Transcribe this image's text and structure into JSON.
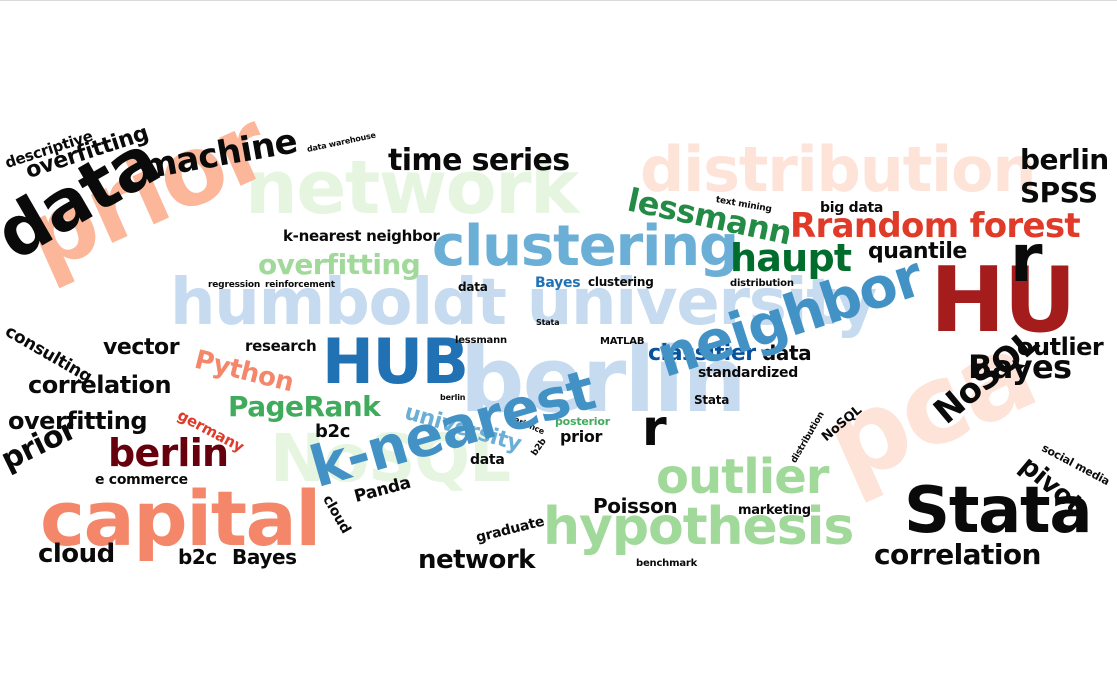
{
  "palette": {
    "black": "#0a0a0a",
    "dark_red": "#a51c1c",
    "maroon": "#67000d",
    "red": "#e03a28",
    "salmon": "#f4876a",
    "peach": "#fcb79b",
    "pale_peach": "#fde3d8",
    "light_blue": "#c6dbef",
    "mid_blue": "#6baed6",
    "blue": "#4292c6",
    "dark_blue": "#2171b5",
    "navy": "#08519c",
    "pale_green": "#e5f5e0",
    "light_green": "#a1d99b",
    "green": "#41ab5d",
    "dark_green": "#238b45",
    "forest": "#006d2c"
  },
  "words": [
    {
      "text": "distribution",
      "color": "pale_peach"
    },
    {
      "text": "network",
      "color": "pale_green"
    },
    {
      "text": "humboldt university",
      "color": "light_blue"
    },
    {
      "text": "prior",
      "color": "peach"
    },
    {
      "text": "berlin",
      "color": "light_blue"
    },
    {
      "text": "NoSQL",
      "color": "pale_green"
    },
    {
      "text": "pca",
      "color": "pale_peach"
    },
    {
      "text": "HU",
      "color": "dark_red"
    },
    {
      "text": "r",
      "color": "black"
    },
    {
      "text": "data",
      "color": "black"
    },
    {
      "text": "machine",
      "color": "black"
    },
    {
      "text": "overfitting",
      "color": "black"
    },
    {
      "text": "descriptive",
      "color": "black"
    },
    {
      "text": "data warehouse",
      "color": "black"
    },
    {
      "text": "time series",
      "color": "black"
    },
    {
      "text": "berlin",
      "color": "black"
    },
    {
      "text": "SPSS",
      "color": "black"
    },
    {
      "text": "lessmann",
      "color": "dark_green"
    },
    {
      "text": "text mining",
      "color": "black"
    },
    {
      "text": "big data",
      "color": "black"
    },
    {
      "text": "Rrandom forest",
      "color": "red"
    },
    {
      "text": "k-nearest neighbor",
      "color": "black"
    },
    {
      "text": "clustering",
      "color": "mid_blue"
    },
    {
      "text": "haupt",
      "color": "forest"
    },
    {
      "text": "quantile",
      "color": "black"
    },
    {
      "text": "overfitting",
      "color": "light_green"
    },
    {
      "text": "regression",
      "color": "black"
    },
    {
      "text": "reinforcement",
      "color": "black"
    },
    {
      "text": "data",
      "color": "black"
    },
    {
      "text": "Bayes",
      "color": "dark_blue"
    },
    {
      "text": "clustering",
      "color": "black"
    },
    {
      "text": "distribution",
      "color": "black"
    },
    {
      "text": "consulting",
      "color": "black"
    },
    {
      "text": "vector",
      "color": "black"
    },
    {
      "text": "research",
      "color": "black"
    },
    {
      "text": "HUB",
      "color": "dark_blue"
    },
    {
      "text": "lessmann",
      "color": "black"
    },
    {
      "text": "Stata",
      "color": "black"
    },
    {
      "text": "MATLAB",
      "color": "black"
    },
    {
      "text": "classifier",
      "color": "navy"
    },
    {
      "text": "data",
      "color": "black"
    },
    {
      "text": "outlier",
      "color": "black"
    },
    {
      "text": "Python",
      "color": "salmon"
    },
    {
      "text": "correlation",
      "color": "black"
    },
    {
      "text": "standardized",
      "color": "black"
    },
    {
      "text": "Bayes",
      "color": "black"
    },
    {
      "text": "overfitting",
      "color": "black"
    },
    {
      "text": "germany",
      "color": "red"
    },
    {
      "text": "PageRank",
      "color": "green"
    },
    {
      "text": "berlin",
      "color": "black"
    },
    {
      "text": "university",
      "color": "mid_blue"
    },
    {
      "text": "b2c",
      "color": "black"
    },
    {
      "text": "variance",
      "color": "black"
    },
    {
      "text": "posterior",
      "color": "green"
    },
    {
      "text": "Stata",
      "color": "black"
    },
    {
      "text": "neighbor",
      "color": "blue"
    },
    {
      "text": "r",
      "color": "black"
    },
    {
      "text": "prior",
      "color": "black"
    },
    {
      "text": "berlin",
      "color": "maroon"
    },
    {
      "text": "prior",
      "color": "black"
    },
    {
      "text": "b2b",
      "color": "black"
    },
    {
      "text": "data",
      "color": "black"
    },
    {
      "text": "distribution",
      "color": "black"
    },
    {
      "text": "NoSQL",
      "color": "black"
    },
    {
      "text": "NoSQL",
      "color": "black"
    },
    {
      "text": "social media",
      "color": "black"
    },
    {
      "text": "pivot",
      "color": "black"
    },
    {
      "text": "e commerce",
      "color": "black"
    },
    {
      "text": "capital",
      "color": "salmon"
    },
    {
      "text": "cloud",
      "color": "black"
    },
    {
      "text": "k-nearest",
      "color": "blue"
    },
    {
      "text": "outlier",
      "color": "light_green"
    },
    {
      "text": "Panda",
      "color": "black"
    },
    {
      "text": "Poisson",
      "color": "black"
    },
    {
      "text": "Stata",
      "color": "black"
    },
    {
      "text": "marketing",
      "color": "black"
    },
    {
      "text": "hypothesis",
      "color": "light_green"
    },
    {
      "text": "graduate",
      "color": "black"
    },
    {
      "text": "cloud",
      "color": "black"
    },
    {
      "text": "b2c",
      "color": "black"
    },
    {
      "text": "Bayes",
      "color": "black"
    },
    {
      "text": "network",
      "color": "black"
    },
    {
      "text": "benchmark",
      "color": "black"
    },
    {
      "text": "correlation",
      "color": "black"
    }
  ]
}
